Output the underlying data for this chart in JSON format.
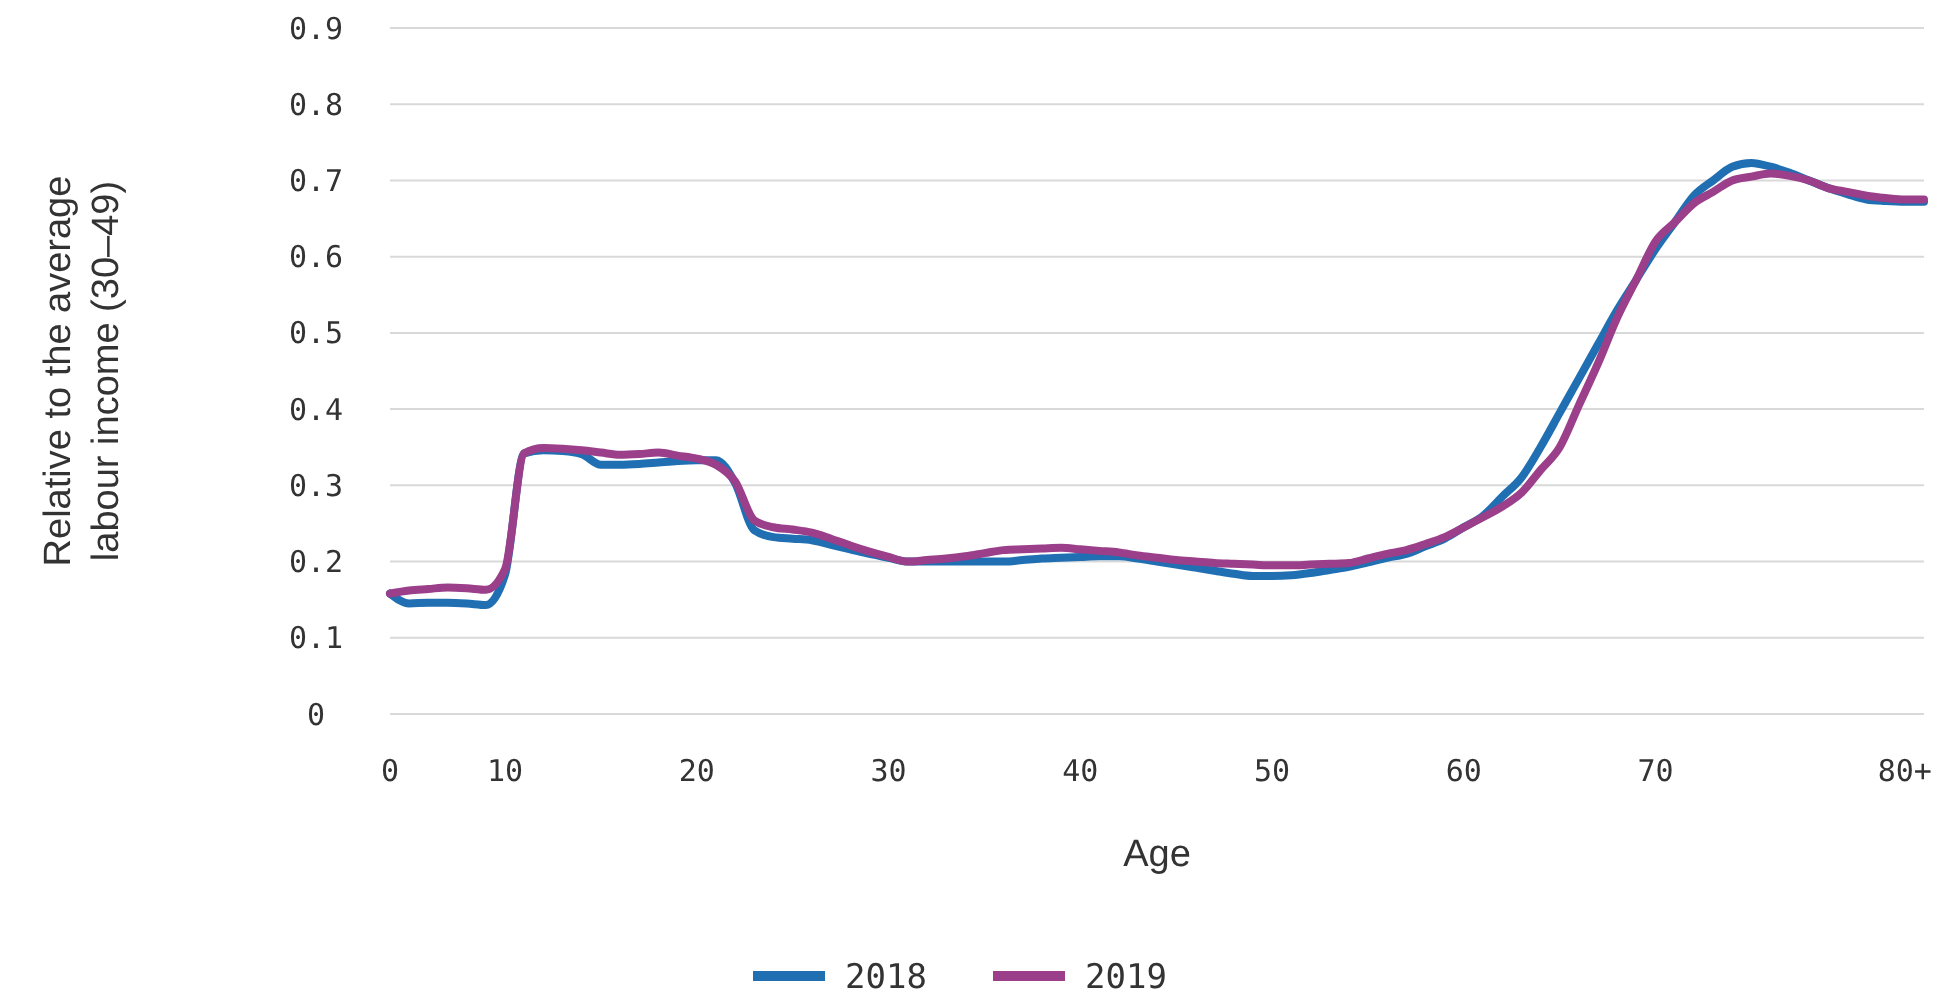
{
  "chart_data": {
    "type": "line",
    "xlabel": "Age",
    "ylabel": "Relative to the average labour income (30–49)",
    "categories": [
      "0",
      null,
      null,
      null,
      null,
      null,
      "10",
      null,
      null,
      null,
      null,
      null,
      null,
      null,
      null,
      null,
      "20",
      null,
      null,
      null,
      null,
      null,
      null,
      null,
      null,
      null,
      "30",
      null,
      null,
      null,
      null,
      null,
      null,
      null,
      null,
      null,
      "40",
      null,
      null,
      null,
      null,
      null,
      null,
      null,
      null,
      null,
      "50",
      null,
      null,
      null,
      null,
      null,
      null,
      null,
      null,
      null,
      "60",
      null,
      null,
      null,
      null,
      null,
      null,
      null,
      null,
      null,
      "70",
      null,
      null,
      null,
      null,
      null,
      null,
      null,
      null,
      null,
      null,
      null,
      null,
      "80+",
      null
    ],
    "ylim": [
      0,
      0.9
    ],
    "yticks": [
      0,
      0.1,
      0.2,
      0.3,
      0.4,
      0.5,
      0.6,
      0.7,
      0.8,
      0.9
    ],
    "grid": "y",
    "legend": "bottom",
    "marker": "none",
    "line_style": "solid",
    "series": [
      {
        "name": "2018",
        "color": "#1f6fb2",
        "values": [
          0.158,
          0.145,
          0.146,
          0.146,
          0.145,
          0.143,
          0.183,
          0.342,
          0.346,
          0.345,
          0.341,
          0.327,
          0.327,
          0.328,
          0.33,
          0.332,
          0.333,
          0.333,
          0.303,
          0.241,
          0.232,
          0.23,
          0.228,
          0.222,
          0.216,
          0.21,
          0.205,
          0.2,
          0.2,
          0.2,
          0.2,
          0.2,
          0.2,
          0.202,
          0.204,
          0.205,
          0.206,
          0.207,
          0.207,
          0.204,
          0.2,
          0.196,
          0.192,
          0.188,
          0.184,
          0.181,
          0.181,
          0.182,
          0.185,
          0.189,
          0.193,
          0.199,
          0.205,
          0.21,
          0.22,
          0.23,
          0.245,
          0.26,
          0.285,
          0.31,
          0.35,
          0.395,
          0.44,
          0.485,
          0.53,
          0.57,
          0.61,
          0.645,
          0.68,
          0.7,
          0.718,
          0.723,
          0.718,
          0.71,
          0.7,
          0.69,
          0.682,
          0.675,
          0.673,
          0.672,
          0.672
        ]
      },
      {
        "name": "2019",
        "color": "#9b3f8b",
        "values": [
          0.158,
          0.162,
          0.164,
          0.166,
          0.165,
          0.163,
          0.19,
          0.342,
          0.349,
          0.348,
          0.346,
          0.343,
          0.34,
          0.341,
          0.343,
          0.339,
          0.335,
          0.327,
          0.305,
          0.254,
          0.245,
          0.242,
          0.238,
          0.23,
          0.221,
          0.213,
          0.206,
          0.2,
          0.202,
          0.204,
          0.207,
          0.211,
          0.215,
          0.216,
          0.217,
          0.218,
          0.216,
          0.214,
          0.212,
          0.208,
          0.205,
          0.202,
          0.2,
          0.198,
          0.197,
          0.196,
          0.195,
          0.195,
          0.196,
          0.197,
          0.198,
          0.204,
          0.21,
          0.215,
          0.223,
          0.232,
          0.245,
          0.258,
          0.272,
          0.29,
          0.32,
          0.35,
          0.405,
          0.46,
          0.52,
          0.57,
          0.62,
          0.645,
          0.67,
          0.685,
          0.7,
          0.705,
          0.709,
          0.706,
          0.7,
          0.69,
          0.685,
          0.68,
          0.677,
          0.675,
          0.675
        ]
      }
    ]
  }
}
